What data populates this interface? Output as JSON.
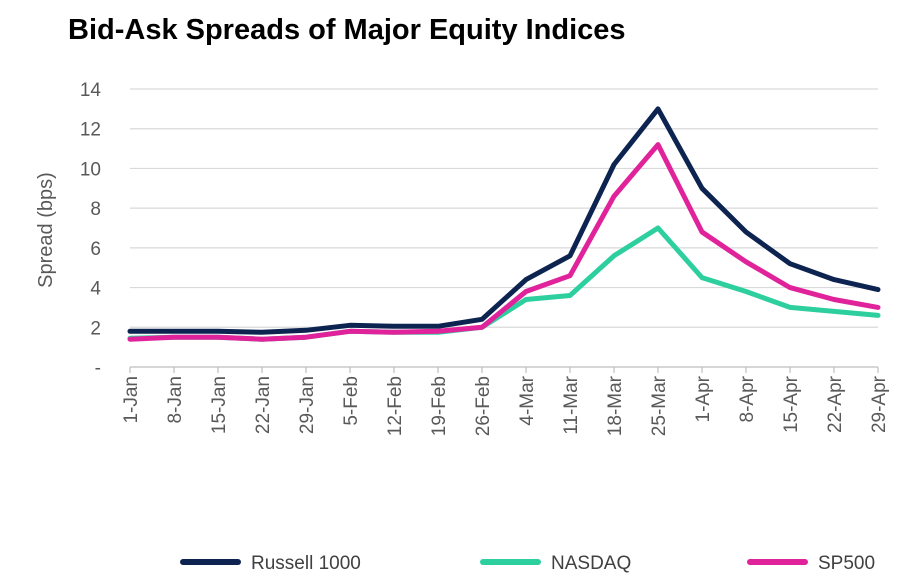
{
  "chart_data": {
    "type": "line",
    "title": "Bid-Ask Spreads of Major Equity Indices",
    "xlabel": "",
    "ylabel": "Spread  (bps)",
    "ylim": [
      0,
      14
    ],
    "yticks": [
      {
        "value": 0,
        "label": "-"
      },
      {
        "value": 2,
        "label": "2"
      },
      {
        "value": 4,
        "label": "4"
      },
      {
        "value": 6,
        "label": "6"
      },
      {
        "value": 8,
        "label": "8"
      },
      {
        "value": 10,
        "label": "10"
      },
      {
        "value": 12,
        "label": "12"
      },
      {
        "value": 14,
        "label": "14"
      }
    ],
    "grid": true,
    "legend": "bottom",
    "categories": [
      "1-Jan",
      "8-Jan",
      "15-Jan",
      "22-Jan",
      "29-Jan",
      "5-Feb",
      "12-Feb",
      "19-Feb",
      "26-Feb",
      "4-Mar",
      "11-Mar",
      "18-Mar",
      "25-Mar",
      "1-Apr",
      "8-Apr",
      "15-Apr",
      "22-Apr",
      "29-Apr"
    ],
    "series": [
      {
        "name": "Russell 1000",
        "color": "#0d2451",
        "values": [
          1.8,
          1.8,
          1.8,
          1.75,
          1.85,
          2.1,
          2.05,
          2.05,
          2.4,
          4.4,
          5.6,
          10.2,
          13.0,
          9.0,
          6.8,
          5.2,
          4.4,
          3.9
        ]
      },
      {
        "name": "NASDAQ",
        "color": "#2ecf9e",
        "values": [
          1.45,
          1.5,
          1.5,
          1.4,
          1.5,
          1.8,
          1.75,
          1.75,
          2.0,
          3.4,
          3.6,
          5.6,
          7.0,
          4.5,
          3.8,
          3.0,
          2.8,
          2.6
        ]
      },
      {
        "name": "SP500",
        "color": "#e0239b",
        "values": [
          1.4,
          1.5,
          1.5,
          1.4,
          1.5,
          1.8,
          1.75,
          1.8,
          2.0,
          3.8,
          4.6,
          8.6,
          11.2,
          6.8,
          5.3,
          4.0,
          3.4,
          3.0
        ]
      }
    ]
  }
}
